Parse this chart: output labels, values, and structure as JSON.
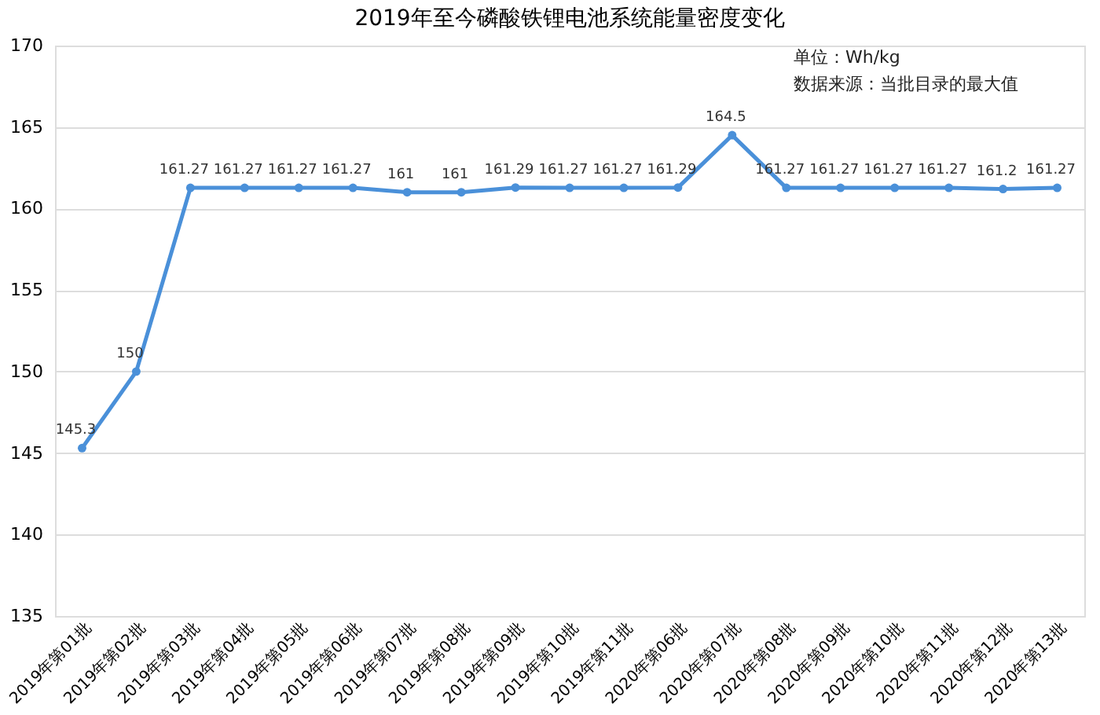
{
  "chart_data": {
    "type": "line",
    "title": "2019年至今磷酸铁锂电池系统能量密度变化",
    "categories": [
      "2019年第01批",
      "2019年第02批",
      "2019年第03批",
      "2019年第04批",
      "2019年第05批",
      "2019年第06批",
      "2019年第07批",
      "2019年第08批",
      "2019年第09批",
      "2019年第10批",
      "2019年第11批",
      "2020年第06批",
      "2020年第07批",
      "2020年第08批",
      "2020年第09批",
      "2020年第10批",
      "2020年第11批",
      "2020年第12批",
      "2020年第13批"
    ],
    "series": [
      {
        "color": "#4a90d9",
        "values": [
          145.3,
          150,
          161.27,
          161.27,
          161.27,
          161.27,
          161,
          161,
          161.29,
          161.27,
          161.27,
          161.29,
          164.5,
          161.27,
          161.27,
          161.27,
          161.27,
          161.2,
          161.27
        ]
      }
    ],
    "ylim": [
      135,
      170
    ],
    "yticks": [
      135,
      140,
      145,
      150,
      155,
      160,
      165,
      170
    ],
    "grid": "y",
    "marker": "circle",
    "line_style": "solid",
    "data_labels": true,
    "annotations": [
      "单位：Wh/kg",
      "数据来源：当批目录的最大值"
    ]
  }
}
